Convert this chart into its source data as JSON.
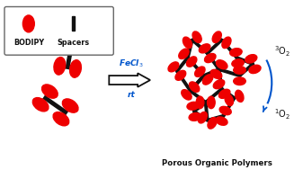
{
  "bg_color": "#ffffff",
  "red_color": "#ee0000",
  "black_color": "#111111",
  "blue_color": "#0055cc",
  "fechl3_text": "FeCl$_3$",
  "rt_text": "rt",
  "bodipy_text": "BODIPY",
  "spacers_text": "Spacers",
  "polymer_text": "Porous Organic Polymers",
  "o2_3_text": "$^3$O$_2$",
  "o2_1_text": "$^1$O$_2$",
  "figsize": [
    3.27,
    1.89
  ],
  "dpi": 100
}
